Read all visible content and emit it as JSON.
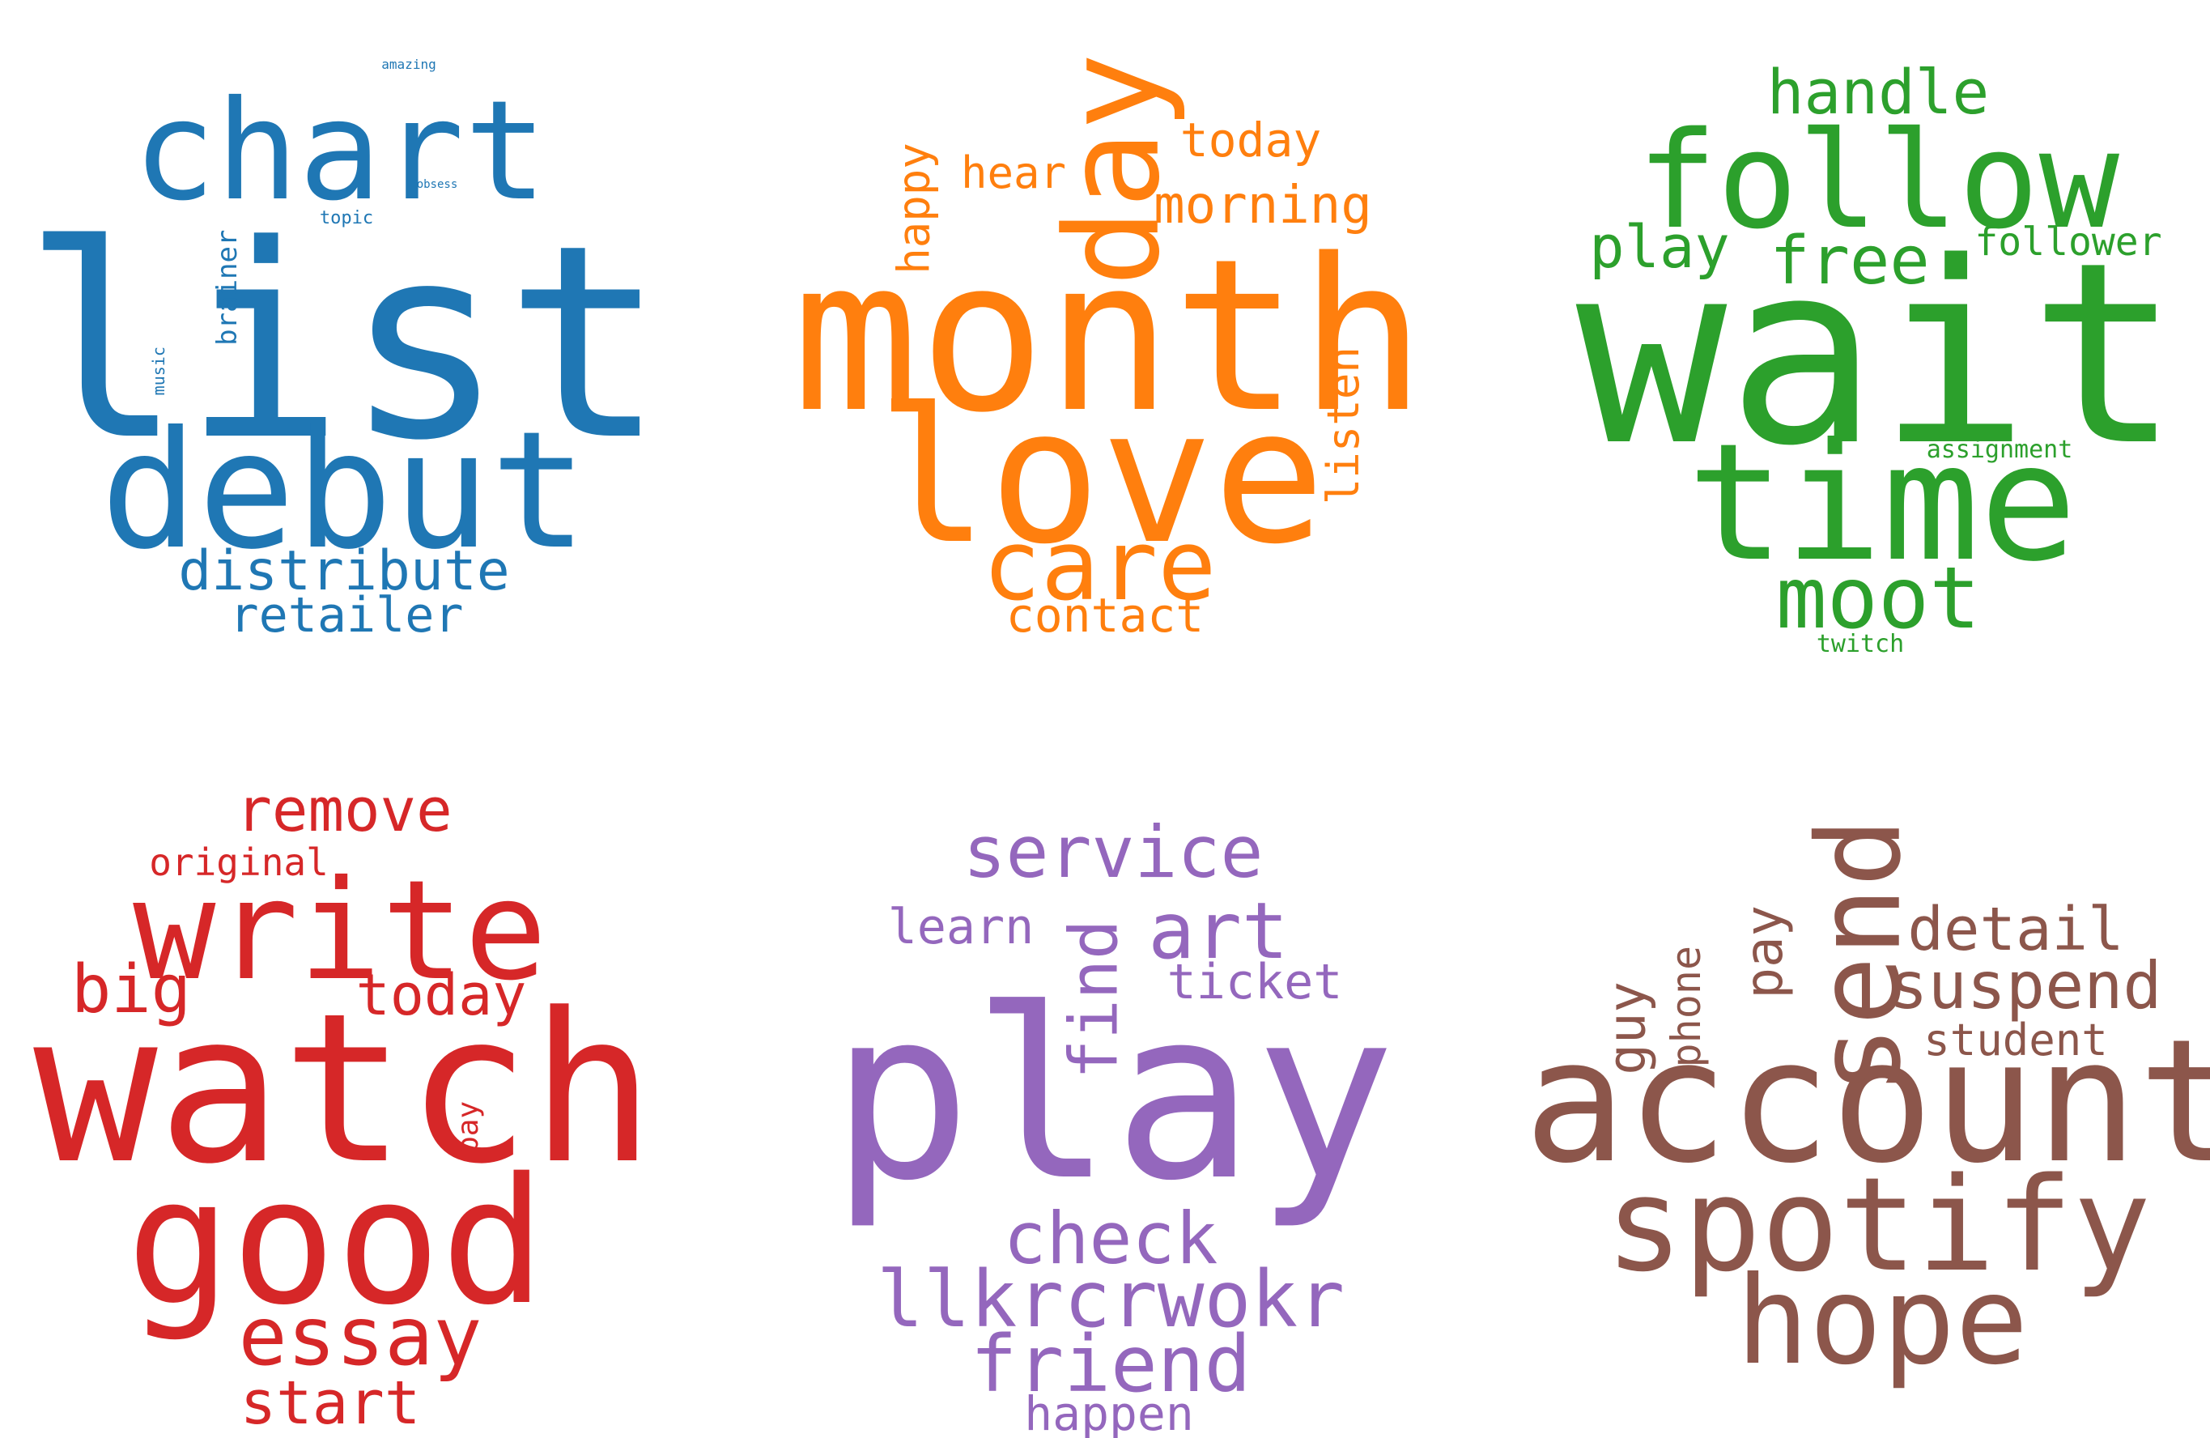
{
  "clouds": [
    {
      "color": "#1f77b4",
      "words": [
        {
          "text": "list",
          "size": 1.0,
          "rot": 0
        },
        {
          "text": "chart",
          "size": 0.55,
          "rot": 0
        },
        {
          "text": "debut",
          "size": 0.7,
          "rot": 0
        },
        {
          "text": "distribute",
          "size": 0.26,
          "rot": 0
        },
        {
          "text": "retailer",
          "size": 0.22,
          "rot": 0
        },
        {
          "text": "brainer",
          "size": 0.13,
          "rot": 90
        },
        {
          "text": "music",
          "size": 0.08,
          "rot": 90
        },
        {
          "text": "topic",
          "size": 0.08,
          "rot": 0
        },
        {
          "text": "obsess",
          "size": 0.05,
          "rot": 0
        },
        {
          "text": "amazing",
          "size": 0.05,
          "rot": 0
        }
      ]
    },
    {
      "color": "#ff7f0e",
      "words": [
        {
          "text": "month",
          "size": 1.0,
          "rot": 0
        },
        {
          "text": "love",
          "size": 0.8,
          "rot": 0
        },
        {
          "text": "day",
          "size": 0.7,
          "rot": 90
        },
        {
          "text": "care",
          "size": 0.45,
          "rot": 0
        },
        {
          "text": "contact",
          "size": 0.24,
          "rot": 0
        },
        {
          "text": "morning",
          "size": 0.26,
          "rot": 0
        },
        {
          "text": "today",
          "size": 0.24,
          "rot": 0
        },
        {
          "text": "hear",
          "size": 0.22,
          "rot": 0
        },
        {
          "text": "happy",
          "size": 0.22,
          "rot": 90
        },
        {
          "text": "listen",
          "size": 0.22,
          "rot": 90
        }
      ]
    },
    {
      "color": "#2ca02c",
      "words": [
        {
          "text": "wait",
          "size": 1.0,
          "rot": 0
        },
        {
          "text": "follow",
          "size": 0.55,
          "rot": 0
        },
        {
          "text": "time",
          "size": 0.7,
          "rot": 0
        },
        {
          "text": "moot",
          "size": 0.38,
          "rot": 0
        },
        {
          "text": "handle",
          "size": 0.28,
          "rot": 0
        },
        {
          "text": "free",
          "size": 0.3,
          "rot": 0
        },
        {
          "text": "play",
          "size": 0.28,
          "rot": 0
        },
        {
          "text": "follower",
          "size": 0.18,
          "rot": 0
        },
        {
          "text": "assignment",
          "size": 0.1,
          "rot": 0
        },
        {
          "text": "twitch",
          "size": 0.1,
          "rot": 0
        }
      ]
    },
    {
      "color": "#d62728",
      "words": [
        {
          "text": "watch",
          "size": 1.0,
          "rot": 0
        },
        {
          "text": "write",
          "size": 0.65,
          "rot": 0
        },
        {
          "text": "good",
          "size": 0.8,
          "rot": 0
        },
        {
          "text": "essay",
          "size": 0.38,
          "rot": 0
        },
        {
          "text": "start",
          "size": 0.28,
          "rot": 0
        },
        {
          "text": "remove",
          "size": 0.28,
          "rot": 0
        },
        {
          "text": "big",
          "size": 0.3,
          "rot": 0
        },
        {
          "text": "today",
          "size": 0.28,
          "rot": 0
        },
        {
          "text": "original",
          "size": 0.18,
          "rot": 0
        },
        {
          "text": "pay",
          "size": 0.14,
          "rot": 90
        }
      ]
    },
    {
      "color": "#9467bd",
      "words": [
        {
          "text": "play",
          "size": 1.0,
          "rot": 0
        },
        {
          "text": "service",
          "size": 0.36,
          "rot": 0
        },
        {
          "text": "art",
          "size": 0.36,
          "rot": 0
        },
        {
          "text": "learn",
          "size": 0.24,
          "rot": 0
        },
        {
          "text": "ticket",
          "size": 0.24,
          "rot": 0
        },
        {
          "text": "find",
          "size": 0.34,
          "rot": 90
        },
        {
          "text": "check",
          "size": 0.36,
          "rot": 0
        },
        {
          "text": "llkrcrwokr",
          "size": 0.4,
          "rot": 0
        },
        {
          "text": "friend",
          "size": 0.4,
          "rot": 0
        },
        {
          "text": "happen",
          "size": 0.24,
          "rot": 0
        }
      ]
    },
    {
      "color": "#8c564b",
      "words": [
        {
          "text": "account",
          "size": 1.0,
          "rot": 0
        },
        {
          "text": "spotify",
          "size": 0.8,
          "rot": 0
        },
        {
          "text": "hope",
          "size": 0.72,
          "rot": 0
        },
        {
          "text": "send",
          "size": 0.66,
          "rot": 90
        },
        {
          "text": "detail",
          "size": 0.32,
          "rot": 0
        },
        {
          "text": "suspend",
          "size": 0.36,
          "rot": 0
        },
        {
          "text": "student",
          "size": 0.24,
          "rot": 0
        },
        {
          "text": "pay",
          "size": 0.28,
          "rot": 90
        },
        {
          "text": "phone",
          "size": 0.22,
          "rot": 90
        },
        {
          "text": "guy",
          "size": 0.28,
          "rot": 90
        }
      ]
    }
  ]
}
